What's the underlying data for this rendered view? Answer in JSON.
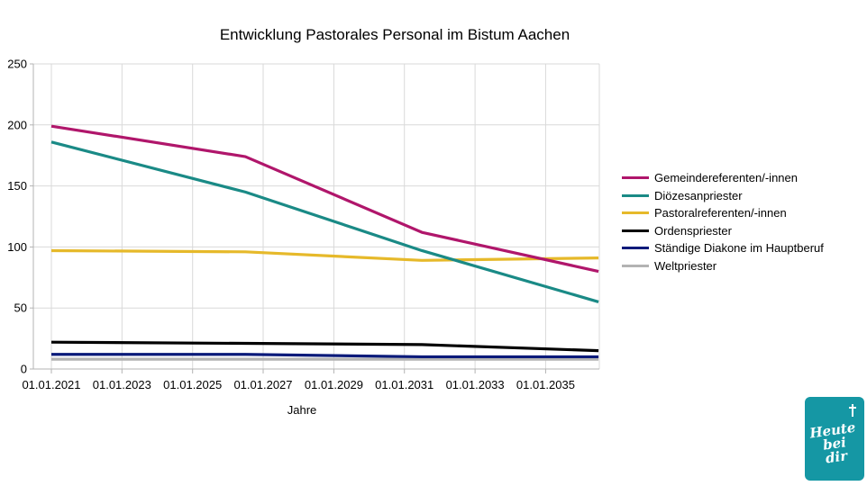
{
  "chart_data": {
    "type": "line",
    "title": "Entwicklung Pastorales Personal im Bistum Aachen",
    "xlabel": "Jahre",
    "ylabel": "",
    "ylim": [
      0,
      250
    ],
    "yticks": [
      0,
      50,
      100,
      150,
      200,
      250
    ],
    "xticks": [
      "01.01.2021",
      "01.01.2023",
      "01.01.2025",
      "01.01.2027",
      "01.01.2029",
      "01.01.2031",
      "01.01.2033",
      "01.01.2035"
    ],
    "x": [
      "01.01.2021",
      "01.07.2026",
      "01.07.2031",
      "01.07.2036"
    ],
    "grid": true,
    "legend_position": "right",
    "series": [
      {
        "name": "Gemeindereferenten/-innen",
        "color": "#b0166b",
        "values": [
          199,
          174,
          112,
          80
        ]
      },
      {
        "name": "Diözesanpriester",
        "color": "#1a8a86",
        "values": [
          186,
          145,
          97,
          55
        ]
      },
      {
        "name": "Pastoralreferenten/-innen",
        "color": "#e6b92a",
        "values": [
          97,
          96,
          89,
          91
        ]
      },
      {
        "name": "Ordenspriester",
        "color": "#000000",
        "values": [
          22,
          21,
          20,
          15
        ]
      },
      {
        "name": "Ständige Diakone im Hauptberuf",
        "color": "#0a1a7a",
        "values": [
          12,
          12,
          10,
          10
        ]
      },
      {
        "name": "Weltpriester",
        "color": "#b3b3b3",
        "values": [
          8,
          8,
          8,
          8
        ]
      }
    ]
  },
  "logo": {
    "text_line1": "Heute",
    "text_line2": "bei",
    "text_line3": "dir"
  }
}
